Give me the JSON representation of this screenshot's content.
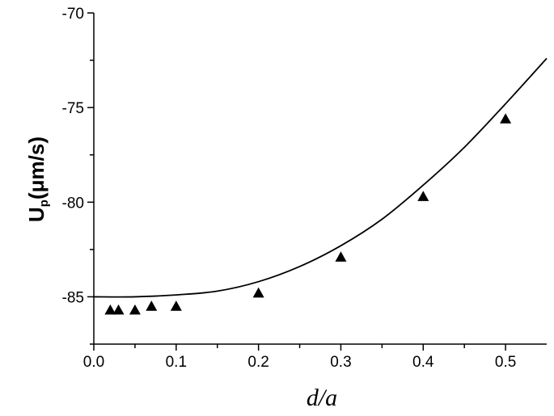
{
  "chart_data": {
    "type": "scatter",
    "xlabel": "d/a",
    "ylabel": {
      "main": "U",
      "sub": "p",
      "unit": "(μm/s)"
    },
    "xlim": [
      0.0,
      0.55
    ],
    "ylim": [
      -87.5,
      -70
    ],
    "x_ticks": [
      0.0,
      0.1,
      0.2,
      0.3,
      0.4,
      0.5
    ],
    "x_tick_labels": [
      "0.0",
      "0.1",
      "0.2",
      "0.3",
      "0.4",
      "0.5"
    ],
    "y_ticks": [
      -70,
      -75,
      -80,
      -85
    ],
    "y_tick_labels": [
      "-70",
      "-75",
      "-80",
      "-85"
    ],
    "grid": false,
    "series": [
      {
        "marker": "triangle",
        "color": "#000000",
        "x": [
          0.02,
          0.03,
          0.05,
          0.07,
          0.1,
          0.2,
          0.3,
          0.4,
          0.5
        ],
        "y": [
          -85.7,
          -85.7,
          -85.7,
          -85.5,
          -85.5,
          -84.8,
          -82.9,
          -79.7,
          -75.6
        ]
      },
      {
        "marker": "line",
        "color": "#000000",
        "x": [
          0.0,
          0.05,
          0.1,
          0.15,
          0.2,
          0.25,
          0.3,
          0.35,
          0.4,
          0.45,
          0.5,
          0.55
        ],
        "y": [
          -85.0,
          -85.0,
          -84.9,
          -84.7,
          -84.2,
          -83.4,
          -82.3,
          -80.9,
          -79.1,
          -77.1,
          -74.8,
          -72.4
        ]
      }
    ]
  }
}
